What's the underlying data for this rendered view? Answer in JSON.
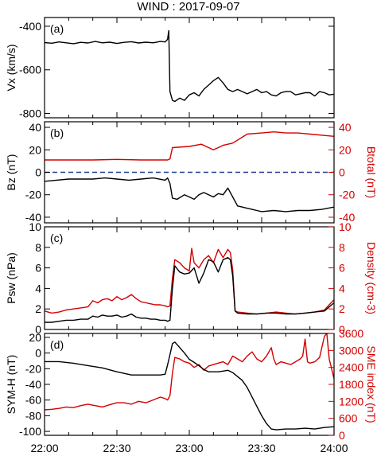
{
  "title": "WIND : 2017-09-07",
  "x_tick_labels": [
    "22:00",
    "22:30",
    "23:00",
    "23:30",
    "24:00"
  ],
  "colors": {
    "black": "#000000",
    "red": "#d40000",
    "dashed": "#1f3a93"
  },
  "chart_data": [
    {
      "type": "line",
      "panel_label": "(a)",
      "ylabel": "Vx (km/s)",
      "x_unit": "minutes after 22:00",
      "xlim": [
        0,
        120
      ],
      "ylim": [
        -820,
        -360
      ],
      "yticks": [
        -400,
        -600,
        -800
      ],
      "series": [
        {
          "color": "#000000",
          "x": [
            0,
            3,
            6,
            9,
            12,
            15,
            18,
            21,
            24,
            27,
            30,
            33,
            36,
            39,
            42,
            45,
            48,
            50,
            51,
            51.5,
            52,
            53,
            54,
            56,
            58,
            60,
            62,
            64,
            66,
            68,
            70,
            72,
            74,
            76,
            78,
            80,
            82,
            84,
            86,
            88,
            90,
            92,
            94,
            96,
            98,
            100,
            102,
            104,
            106,
            108,
            110,
            112,
            114,
            116,
            118,
            120
          ],
          "y": [
            -475,
            -478,
            -472,
            -476,
            -480,
            -474,
            -477,
            -470,
            -476,
            -473,
            -479,
            -474,
            -471,
            -477,
            -473,
            -476,
            -470,
            -472,
            -460,
            -420,
            -700,
            -740,
            -745,
            -730,
            -740,
            -715,
            -705,
            -720,
            -690,
            -670,
            -650,
            -635,
            -660,
            -690,
            -700,
            -690,
            -700,
            -710,
            -700,
            -690,
            -705,
            -700,
            -715,
            -720,
            -705,
            -700,
            -700,
            -715,
            -710,
            -705,
            -705,
            -720,
            -700,
            -705,
            -715,
            -712
          ]
        }
      ]
    },
    {
      "type": "line",
      "panel_label": "(b)",
      "ylabel": "Bz (nT)",
      "y2label": "Btotal (nT)",
      "xlim": [
        0,
        120
      ],
      "ylim": [
        -45,
        45
      ],
      "yticks": [
        40,
        20,
        0,
        -20,
        -40
      ],
      "y2lim": [
        -45,
        45
      ],
      "y2ticks": [
        40,
        20,
        0,
        -20,
        -40
      ],
      "zero_line": 0,
      "series": [
        {
          "name": "Btotal",
          "axis": "right",
          "color": "#d40000",
          "x": [
            0,
            10,
            20,
            30,
            40,
            50,
            51,
            52,
            53,
            60,
            65,
            68,
            70,
            72,
            74,
            78,
            84,
            90,
            95,
            100,
            105,
            110,
            115,
            120
          ],
          "y": [
            11,
            11,
            11,
            11.5,
            11,
            11,
            11,
            12,
            22,
            23,
            25,
            22,
            20,
            22,
            24,
            26,
            34,
            35,
            36,
            35,
            35,
            34,
            33,
            32
          ]
        },
        {
          "name": "Bz",
          "axis": "left",
          "color": "#000000",
          "x": [
            0,
            5,
            10,
            15,
            20,
            25,
            30,
            35,
            40,
            45,
            50,
            51,
            52,
            53,
            55,
            58,
            60,
            62,
            64,
            66,
            68,
            70,
            72,
            74,
            76,
            78,
            80,
            82,
            84,
            86,
            88,
            90,
            95,
            100,
            105,
            110,
            115,
            120
          ],
          "y": [
            -8,
            -7,
            -6,
            -6,
            -6,
            -5,
            -6,
            -7,
            -6,
            -5,
            -7,
            -5,
            -10,
            -23,
            -24,
            -20,
            -22,
            -24,
            -20,
            -18,
            -20,
            -22,
            -19,
            -20,
            -14,
            -22,
            -30,
            -31,
            -32,
            -33,
            -34,
            -35,
            -34,
            -35,
            -34,
            -34,
            -33,
            -31
          ]
        }
      ]
    },
    {
      "type": "line",
      "panel_label": "(c)",
      "ylabel": "Psw (nPa)",
      "y2label": "Density (cm-3)",
      "xlim": [
        0,
        120
      ],
      "ylim": [
        0,
        10
      ],
      "yticks": [
        0,
        2,
        4,
        6,
        8,
        10
      ],
      "y2lim": [
        0,
        10
      ],
      "y2ticks": [
        0,
        2,
        4,
        6,
        8,
        10
      ],
      "series": [
        {
          "name": "Density",
          "axis": "right",
          "color": "#d40000",
          "x": [
            0,
            3,
            6,
            9,
            12,
            15,
            18,
            20,
            22,
            24,
            26,
            28,
            30,
            32,
            34,
            36,
            38,
            40,
            42,
            44,
            46,
            48,
            50,
            51,
            52,
            53,
            54,
            56,
            58,
            60,
            61,
            62,
            64,
            66,
            68,
            70,
            72,
            74,
            76,
            77,
            78,
            79,
            80,
            84,
            88,
            92,
            96,
            100,
            104,
            108,
            112,
            116,
            118,
            120
          ],
          "y": [
            1.8,
            1.6,
            1.7,
            1.9,
            2.0,
            2.1,
            2.2,
            2.8,
            2.6,
            2.9,
            3.0,
            2.8,
            3.2,
            2.9,
            3.1,
            3.4,
            3.0,
            2.7,
            2.6,
            2.5,
            2.4,
            2.4,
            2.3,
            2.2,
            2.3,
            5.0,
            6.8,
            6.5,
            6.0,
            5.7,
            7.9,
            6.5,
            6.0,
            6.8,
            7.2,
            6.5,
            7.8,
            7.0,
            7.8,
            7.5,
            5.8,
            1.8,
            1.7,
            1.6,
            1.5,
            1.6,
            1.7,
            1.6,
            1.5,
            1.6,
            1.7,
            1.9,
            2.4,
            2.9
          ]
        },
        {
          "name": "Psw",
          "axis": "left",
          "color": "#000000",
          "x": [
            0,
            3,
            6,
            9,
            12,
            15,
            18,
            20,
            22,
            24,
            26,
            28,
            30,
            32,
            34,
            36,
            38,
            40,
            42,
            44,
            46,
            48,
            50,
            51,
            52,
            53,
            54,
            56,
            58,
            60,
            62,
            64,
            66,
            68,
            70,
            72,
            74,
            76,
            77,
            78,
            79,
            80,
            84,
            88,
            92,
            96,
            100,
            104,
            108,
            112,
            116,
            118,
            120
          ],
          "y": [
            0.7,
            0.7,
            0.8,
            0.9,
            0.9,
            1.0,
            1.0,
            1.3,
            1.2,
            1.4,
            1.3,
            1.3,
            1.4,
            1.2,
            1.3,
            1.5,
            1.2,
            1.1,
            1.1,
            1.0,
            1.0,
            0.9,
            0.9,
            0.8,
            0.9,
            4.0,
            6.2,
            5.6,
            5.4,
            5.5,
            6.0,
            4.5,
            5.5,
            6.8,
            6.6,
            5.6,
            6.8,
            7.0,
            6.8,
            5.2,
            1.8,
            1.6,
            1.5,
            1.5,
            1.6,
            1.6,
            1.5,
            1.5,
            1.6,
            1.7,
            1.8,
            2.2,
            2.6
          ]
        }
      ]
    },
    {
      "type": "line",
      "panel_label": "(d)",
      "ylabel": "SYM-H (nT)",
      "y2label": "SME index (nT)",
      "xlim": [
        0,
        120
      ],
      "ylim": [
        -105,
        25
      ],
      "yticks": [
        20,
        0,
        -20,
        -40,
        -60,
        -80,
        -100
      ],
      "y2lim": [
        0,
        3600
      ],
      "y2ticks": [
        3600,
        3000,
        2400,
        1800,
        1200,
        600,
        0
      ],
      "series": [
        {
          "name": "SME index",
          "axis": "right",
          "color": "#d40000",
          "x": [
            0,
            3,
            6,
            9,
            12,
            15,
            18,
            21,
            24,
            27,
            30,
            33,
            36,
            39,
            42,
            45,
            48,
            50,
            51,
            52,
            53,
            54,
            56,
            58,
            60,
            62,
            64,
            66,
            68,
            70,
            72,
            74,
            76,
            78,
            80,
            82,
            84,
            86,
            88,
            90,
            92,
            94,
            95,
            96,
            98,
            100,
            102,
            104,
            106,
            107,
            108,
            109,
            110,
            112,
            114,
            116,
            117,
            118,
            120
          ],
          "y": [
            900,
            920,
            950,
            1000,
            980,
            1050,
            1100,
            1050,
            1000,
            1080,
            1150,
            1150,
            1100,
            1200,
            1150,
            1250,
            1350,
            1300,
            1250,
            1400,
            2200,
            2750,
            2700,
            2600,
            2550,
            2400,
            2500,
            2300,
            2450,
            2500,
            2550,
            2600,
            2500,
            2800,
            2700,
            2600,
            2800,
            2950,
            2700,
            2600,
            2800,
            3100,
            2700,
            2500,
            2600,
            2550,
            2500,
            2600,
            2700,
            2800,
            3400,
            2600,
            2550,
            2600,
            2750,
            3500,
            3600,
            2700,
            2000
          ]
        },
        {
          "name": "SYM-H",
          "axis": "left",
          "color": "#000000",
          "x": [
            0,
            6,
            12,
            18,
            24,
            30,
            36,
            42,
            48,
            50,
            51,
            52,
            53,
            54,
            56,
            58,
            60,
            62,
            64,
            66,
            68,
            70,
            72,
            74,
            76,
            78,
            80,
            82,
            84,
            86,
            88,
            90,
            92,
            94,
            96,
            100,
            104,
            108,
            112,
            116,
            120
          ],
          "y": [
            -11,
            -11,
            -13,
            -16,
            -19,
            -24,
            -28,
            -28,
            -28,
            -27,
            -15,
            -2,
            12,
            14,
            7,
            0,
            -8,
            -12,
            -16,
            -21,
            -24,
            -24,
            -24,
            -23,
            -22,
            -25,
            -30,
            -35,
            -44,
            -56,
            -68,
            -80,
            -90,
            -97,
            -98,
            -97,
            -97,
            -96,
            -97,
            -95,
            -94
          ]
        }
      ]
    }
  ]
}
